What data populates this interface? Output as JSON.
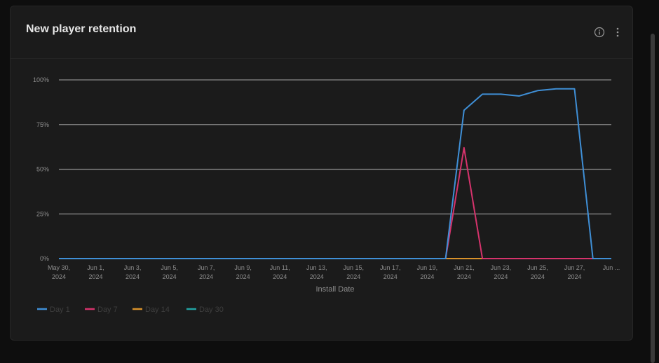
{
  "panel": {
    "title": "New player retention"
  },
  "icons": {
    "info": "info-icon",
    "more": "more-vertical-icon"
  },
  "colors": {
    "grid": "#8a8a8a",
    "tick": "#8e8e8e",
    "legend_text": "#3e3e3e"
  },
  "chart_data": {
    "type": "line",
    "x": [
      "May 30, 2024",
      "May 31, 2024",
      "Jun 1, 2024",
      "Jun 2, 2024",
      "Jun 3, 2024",
      "Jun 4, 2024",
      "Jun 5, 2024",
      "Jun 6, 2024",
      "Jun 7, 2024",
      "Jun 8, 2024",
      "Jun 9, 2024",
      "Jun 10, 2024",
      "Jun 11, 2024",
      "Jun 12, 2024",
      "Jun 13, 2024",
      "Jun 14, 2024",
      "Jun 15, 2024",
      "Jun 16, 2024",
      "Jun 17, 2024",
      "Jun 18, 2024",
      "Jun 19, 2024",
      "Jun 20, 2024",
      "Jun 21, 2024",
      "Jun 22, 2024",
      "Jun 23, 2024",
      "Jun 24, 2024",
      "Jun 25, 2024",
      "Jun 26, 2024",
      "Jun 27, 2024",
      "Jun 28, 2024",
      "Jun 29, 2024"
    ],
    "x_ticks": [
      {
        "line1": "May 30,",
        "line2": "2024"
      },
      {
        "line1": "Jun 1,",
        "line2": "2024"
      },
      {
        "line1": "Jun 3,",
        "line2": "2024"
      },
      {
        "line1": "Jun 5,",
        "line2": "2024"
      },
      {
        "line1": "Jun 7,",
        "line2": "2024"
      },
      {
        "line1": "Jun 9,",
        "line2": "2024"
      },
      {
        "line1": "Jun 11,",
        "line2": "2024"
      },
      {
        "line1": "Jun 13,",
        "line2": "2024"
      },
      {
        "line1": "Jun 15,",
        "line2": "2024"
      },
      {
        "line1": "Jun 17,",
        "line2": "2024"
      },
      {
        "line1": "Jun 19,",
        "line2": "2024"
      },
      {
        "line1": "Jun 21,",
        "line2": "2024"
      },
      {
        "line1": "Jun 23,",
        "line2": "2024"
      },
      {
        "line1": "Jun 25,",
        "line2": "2024"
      },
      {
        "line1": "Jun 27,",
        "line2": "2024"
      },
      {
        "line1": "Jun ...",
        "line2": ""
      }
    ],
    "series": [
      {
        "name": "Day 1",
        "color": "#3f8fd6",
        "values": [
          0,
          0,
          0,
          0,
          0,
          0,
          0,
          0,
          0,
          0,
          0,
          0,
          0,
          0,
          0,
          0,
          0,
          0,
          0,
          0,
          0,
          0,
          83,
          92,
          92,
          91,
          94,
          95,
          95,
          0,
          0
        ]
      },
      {
        "name": "Day 7",
        "color": "#d6336c",
        "values": [
          0,
          0,
          0,
          0,
          0,
          0,
          0,
          0,
          0,
          0,
          0,
          0,
          0,
          0,
          0,
          0,
          0,
          0,
          0,
          0,
          0,
          0,
          62,
          0,
          0,
          0,
          0,
          0,
          0,
          0,
          0
        ]
      },
      {
        "name": "Day 14",
        "color": "#d9922b",
        "values": [
          0,
          0,
          0,
          0,
          0,
          0,
          0,
          0,
          0,
          0,
          0,
          0,
          0,
          0,
          0,
          0,
          0,
          0,
          0,
          0,
          0,
          0,
          0,
          0,
          0,
          0,
          0,
          0,
          0,
          0,
          0
        ]
      },
      {
        "name": "Day 30",
        "color": "#22a3a3",
        "values": [
          0,
          0,
          0,
          0,
          0,
          0,
          0,
          0,
          0,
          0,
          0,
          0,
          0,
          0,
          0,
          0,
          0,
          0,
          0,
          0,
          0,
          0,
          0,
          0,
          0,
          0,
          0,
          0,
          0,
          0,
          0
        ]
      }
    ],
    "y_ticks": [
      "0%",
      "25%",
      "50%",
      "75%",
      "100%"
    ],
    "ylim": [
      0,
      100
    ],
    "xlabel": "Install Date",
    "ylabel": "",
    "grid": "horizontal",
    "legend_position": "bottom-left"
  }
}
